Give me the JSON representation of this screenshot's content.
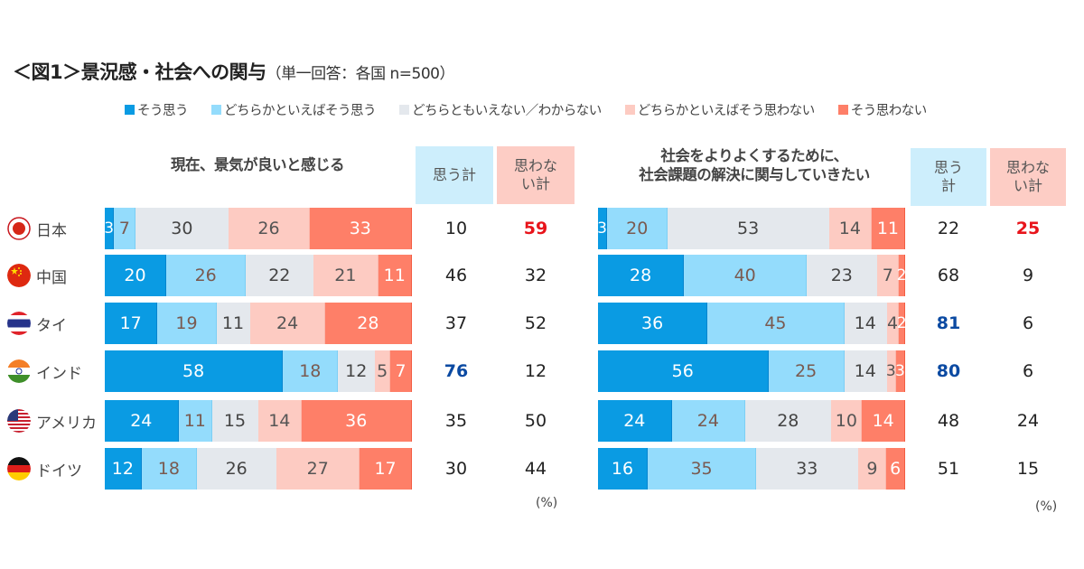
{
  "title": {
    "main": "＜図1＞景況感・社会への関与",
    "sub": "（単一回答：各国  n=500）"
  },
  "legend": [
    {
      "label": "そう思う",
      "color": "#0a9be3"
    },
    {
      "label": "どちらかといえばそう思う",
      "color": "#94dcfc"
    },
    {
      "label": "どちらともいえない／わからない",
      "color": "#e4e8ed"
    },
    {
      "label": "どちらかといえばそう思わない",
      "color": "#fdcbc2"
    },
    {
      "label": "そう思わない",
      "color": "#fe7f68"
    }
  ],
  "headers": {
    "positive_left": "思う計",
    "negative_left": "思わな\nい計",
    "positive_right": "思う\n計",
    "negative_right": "思わな\nい計"
  },
  "unit_label": "(%)",
  "countries": [
    {
      "name": "日本",
      "flag": "japan-flag-icon"
    },
    {
      "name": "中国",
      "flag": "china-flag-icon"
    },
    {
      "name": "タイ",
      "flag": "thailand-flag-icon"
    },
    {
      "name": "インド",
      "flag": "india-flag-icon"
    },
    {
      "name": "アメリカ",
      "flag": "usa-flag-icon"
    },
    {
      "name": "ドイツ",
      "flag": "germany-flag-icon"
    }
  ],
  "chart_data": [
    {
      "type": "bar",
      "orientation": "horizontal-stacked-100",
      "title": "現在、景気が良いと感じる",
      "categories": [
        "日本",
        "中国",
        "タイ",
        "インド",
        "アメリカ",
        "ドイツ"
      ],
      "series": [
        {
          "name": "そう思う",
          "values": [
            3,
            20,
            17,
            58,
            24,
            12
          ]
        },
        {
          "name": "どちらかといえばそう思う",
          "values": [
            7,
            26,
            19,
            18,
            11,
            18
          ]
        },
        {
          "name": "どちらともいえない／わからない",
          "values": [
            30,
            22,
            11,
            12,
            15,
            26
          ]
        },
        {
          "name": "どちらかといえばそう思わない",
          "values": [
            26,
            21,
            24,
            5,
            14,
            27
          ]
        },
        {
          "name": "そう思わない",
          "values": [
            33,
            11,
            28,
            7,
            36,
            17
          ]
        }
      ],
      "totals": {
        "思う計": [
          10,
          46,
          37,
          76,
          35,
          30
        ],
        "思わない計": [
          59,
          32,
          52,
          12,
          50,
          44
        ]
      },
      "highlights": {
        "思う計": [
          3
        ],
        "思わない計": [
          0
        ]
      },
      "unit": "%"
    },
    {
      "type": "bar",
      "orientation": "horizontal-stacked-100",
      "title": "社会をよりよくするために、\n社会課題の解決に関与していきたい",
      "categories": [
        "日本",
        "中国",
        "タイ",
        "インド",
        "アメリカ",
        "ドイツ"
      ],
      "series": [
        {
          "name": "そう思う",
          "values": [
            3,
            28,
            36,
            56,
            24,
            16
          ]
        },
        {
          "name": "どちらかといえばそう思う",
          "values": [
            20,
            40,
            45,
            25,
            24,
            35
          ]
        },
        {
          "name": "どちらともいえない／わからない",
          "values": [
            53,
            23,
            14,
            14,
            28,
            33
          ]
        },
        {
          "name": "どちらかといえばそう思わない",
          "values": [
            14,
            7,
            4,
            3,
            10,
            9
          ]
        },
        {
          "name": "そう思わない",
          "values": [
            11,
            2,
            2,
            3,
            14,
            6
          ]
        }
      ],
      "totals": {
        "思う計": [
          22,
          68,
          81,
          80,
          48,
          51
        ],
        "思わない計": [
          25,
          9,
          6,
          6,
          24,
          15
        ]
      },
      "highlights": {
        "思う計": [
          2,
          3
        ],
        "思わない計": [
          0
        ]
      },
      "unit": "%"
    }
  ]
}
